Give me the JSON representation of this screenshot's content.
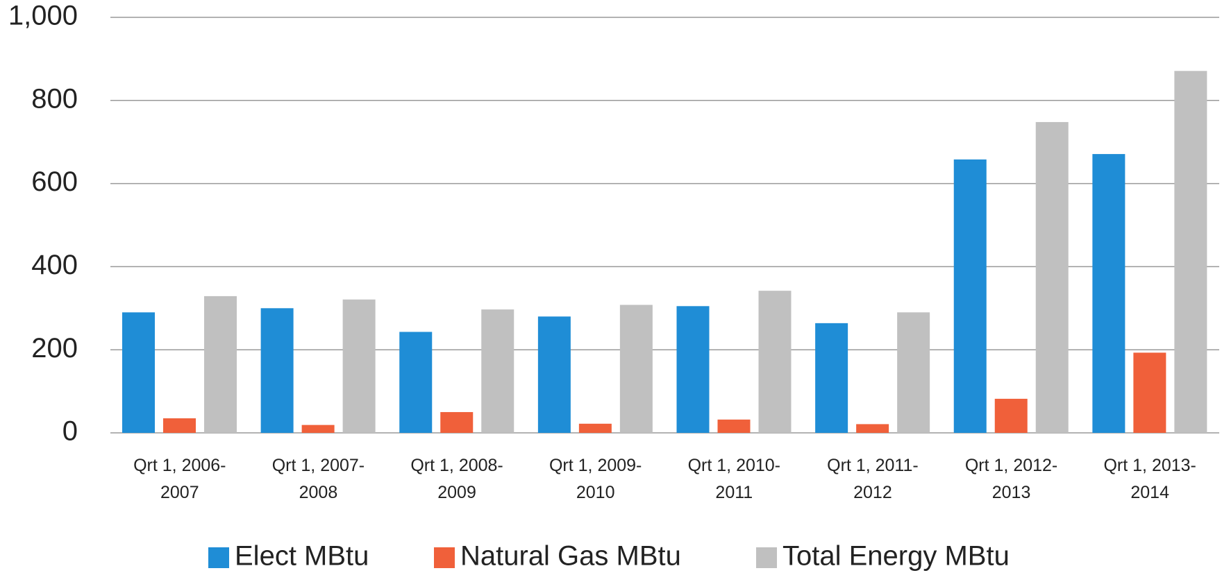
{
  "chart_data": {
    "type": "bar",
    "categories": [
      "Qrt 1, 2006-2007",
      "Qrt 1, 2007-2008",
      "Qrt 1, 2008-2009",
      "Qrt 1, 2009-2010",
      "Qrt 1, 2010-2011",
      "Qrt 1, 2011-2012",
      "Qrt 1, 2012-2013",
      "Qrt 1, 2013-2014"
    ],
    "series": [
      {
        "name": "Elect MBtu",
        "color": "#1f8dd6",
        "values": [
          290,
          300,
          243,
          280,
          305,
          264,
          658,
          671
        ]
      },
      {
        "name": "Natural Gas MBtu",
        "color": "#f0603a",
        "values": [
          35,
          19,
          50,
          22,
          32,
          21,
          82,
          193
        ]
      },
      {
        "name": "Total Energy MBtu",
        "color": "#c0c0c0",
        "values": [
          329,
          321,
          297,
          308,
          342,
          290,
          748,
          871
        ]
      }
    ],
    "ylim": [
      0,
      1000
    ],
    "yticks": [
      0,
      200,
      400,
      600,
      800,
      {
        "value": 1000,
        "label": "1,000"
      }
    ],
    "grid": true,
    "legend": "bottom"
  }
}
